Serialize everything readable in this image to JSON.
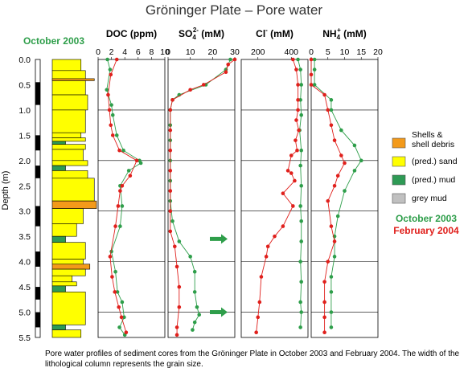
{
  "title": "Gröninger Plate – Pore water",
  "date_label": "October 2003",
  "caption": "Pore water profiles of sediment cores from the Gröninger Plate in October 2003 and February 2004. The width of the lithological column represents the grain size.",
  "depth_axis": {
    "label": "Depth (m)",
    "range": [
      0,
      5.5
    ],
    "ticks": [
      "0.0",
      "0.5",
      "1.0",
      "1.5",
      "2.0",
      "2.5",
      "3.0",
      "3.5",
      "4.0",
      "4.5",
      "5.0",
      "5.5"
    ]
  },
  "colors": {
    "october": "#2e9e4a",
    "february": "#e0201c",
    "shells": "#f39a1a",
    "sand": "#ffff00",
    "mud": "#2e9a55",
    "grey_mud": "#c0c0c0"
  },
  "legend": {
    "items": [
      {
        "key": "shells",
        "label_lines": [
          "Shells &",
          "shell debris"
        ]
      },
      {
        "key": "sand",
        "label_lines": [
          "(pred.) sand"
        ]
      },
      {
        "key": "mud",
        "label_lines": [
          "(pred.) mud"
        ]
      },
      {
        "key": "grey_mud",
        "label_lines": [
          "grey mud"
        ]
      }
    ],
    "series_october": "October 2003",
    "series_february": "February 2004"
  },
  "lithology": {
    "layers": [
      {
        "top": 0.0,
        "bottom": 0.22,
        "type": "sand",
        "grain_size": 0.65
      },
      {
        "top": 0.22,
        "bottom": 0.4,
        "type": "sand",
        "grain_size": 0.75
      },
      {
        "top": 0.38,
        "bottom": 0.42,
        "type": "shells",
        "grain_size": 0.95
      },
      {
        "top": 0.42,
        "bottom": 0.7,
        "type": "sand",
        "grain_size": 0.75
      },
      {
        "top": 0.7,
        "bottom": 1.0,
        "type": "sand",
        "grain_size": 0.8
      },
      {
        "top": 1.0,
        "bottom": 1.45,
        "type": "sand",
        "grain_size": 0.75
      },
      {
        "top": 1.45,
        "bottom": 1.55,
        "type": "sand",
        "grain_size": 0.65
      },
      {
        "top": 1.55,
        "bottom": 1.62,
        "type": "sand",
        "grain_size": 0.75
      },
      {
        "top": 1.62,
        "bottom": 1.68,
        "type": "mud",
        "grain_size": 0.3
      },
      {
        "top": 1.68,
        "bottom": 1.78,
        "type": "sand",
        "grain_size": 0.75
      },
      {
        "top": 1.78,
        "bottom": 2.0,
        "type": "sand",
        "grain_size": 0.7
      },
      {
        "top": 2.0,
        "bottom": 2.1,
        "type": "sand",
        "grain_size": 0.8
      },
      {
        "top": 2.1,
        "bottom": 2.2,
        "type": "mud",
        "grain_size": 0.3
      },
      {
        "top": 2.2,
        "bottom": 2.35,
        "type": "sand",
        "grain_size": 0.8
      },
      {
        "top": 2.35,
        "bottom": 2.8,
        "type": "sand",
        "grain_size": 0.95
      },
      {
        "top": 2.8,
        "bottom": 2.95,
        "type": "shells",
        "grain_size": 1.0
      },
      {
        "top": 2.95,
        "bottom": 3.25,
        "type": "sand",
        "grain_size": 0.7
      },
      {
        "top": 3.25,
        "bottom": 3.5,
        "type": "sand",
        "grain_size": 0.55
      },
      {
        "top": 3.5,
        "bottom": 3.62,
        "type": "mud",
        "grain_size": 0.3
      },
      {
        "top": 3.62,
        "bottom": 3.95,
        "type": "sand",
        "grain_size": 0.75
      },
      {
        "top": 3.95,
        "bottom": 4.05,
        "type": "sand",
        "grain_size": 0.7
      },
      {
        "top": 4.05,
        "bottom": 4.15,
        "type": "shells",
        "grain_size": 0.85
      },
      {
        "top": 4.15,
        "bottom": 4.28,
        "type": "sand",
        "grain_size": 0.75
      },
      {
        "top": 4.28,
        "bottom": 4.4,
        "type": "sand",
        "grain_size": 0.45
      },
      {
        "top": 4.4,
        "bottom": 4.48,
        "type": "sand",
        "grain_size": 0.55
      },
      {
        "top": 4.48,
        "bottom": 4.6,
        "type": "mud",
        "grain_size": 0.3
      },
      {
        "top": 4.6,
        "bottom": 5.25,
        "type": "sand",
        "grain_size": 0.75
      },
      {
        "top": 5.25,
        "bottom": 5.35,
        "type": "mud",
        "grain_size": 0.3
      },
      {
        "top": 5.35,
        "bottom": 5.5,
        "type": "sand",
        "grain_size": 0.65
      }
    ],
    "marker_bars": [
      [
        0.45,
        0.9
      ],
      [
        1.5,
        1.8
      ],
      [
        2.1,
        2.35
      ],
      [
        2.9,
        3.3
      ],
      [
        3.8,
        4.1
      ],
      [
        4.5,
        4.75
      ],
      [
        5.0,
        5.3
      ]
    ]
  },
  "chart_data": [
    {
      "type": "line",
      "title": "DOC (ppm)",
      "xlim": [
        0,
        10
      ],
      "xticks": [
        "0",
        "2",
        "4",
        "6",
        "8",
        "10"
      ],
      "grid": true,
      "gridlines": [
        1.0,
        2.0,
        3.0,
        4.0,
        5.0
      ],
      "series": [
        {
          "name": "October 2003",
          "points": [
            [
              1.4,
              0
            ],
            [
              1.8,
              0.2
            ],
            [
              1.3,
              0.6
            ],
            [
              2.0,
              0.9
            ],
            [
              2.2,
              1.1
            ],
            [
              2.8,
              1.5
            ],
            [
              3.8,
              1.8
            ],
            [
              6.2,
              2.0
            ],
            [
              6.4,
              2.05
            ],
            [
              4.6,
              2.2
            ],
            [
              3.3,
              2.5
            ],
            [
              3.6,
              2.9
            ],
            [
              3.3,
              3.3
            ],
            [
              2.0,
              3.8
            ],
            [
              2.6,
              4.2
            ],
            [
              2.9,
              4.6
            ],
            [
              3.6,
              4.8
            ],
            [
              3.9,
              5.1
            ],
            [
              3.2,
              5.3
            ],
            [
              4.0,
              5.45
            ]
          ]
        },
        {
          "name": "February 2004",
          "points": [
            [
              2.8,
              0
            ],
            [
              1.9,
              0.3
            ],
            [
              1.5,
              0.7
            ],
            [
              1.7,
              1.0
            ],
            [
              1.9,
              1.3
            ],
            [
              2.2,
              1.5
            ],
            [
              3.2,
              1.8
            ],
            [
              5.8,
              2.0
            ],
            [
              4.8,
              2.3
            ],
            [
              3.6,
              2.5
            ],
            [
              3.3,
              2.6
            ],
            [
              3.0,
              2.9
            ],
            [
              2.6,
              3.3
            ],
            [
              1.8,
              3.9
            ],
            [
              2.1,
              4.3
            ],
            [
              2.5,
              4.6
            ],
            [
              3.1,
              4.9
            ],
            [
              3.5,
              5.1
            ],
            [
              4.2,
              5.4
            ]
          ]
        }
      ]
    },
    {
      "type": "line",
      "title_main": "SO",
      "title_sub": "4",
      "title_sup": "2-",
      "title_unit": " (mM)",
      "xlim": [
        0,
        30
      ],
      "xticks": [
        "0",
        "10",
        "20",
        "30"
      ],
      "grid": true,
      "gridlines": [
        1.0,
        2.0,
        3.0,
        4.0,
        5.0
      ],
      "arrow_depths": [
        3.55,
        5.0
      ],
      "series": [
        {
          "name": "October 2003",
          "points": [
            [
              28,
              0
            ],
            [
              26,
              0.2
            ],
            [
              17,
              0.5
            ],
            [
              5,
              0.7
            ],
            [
              2,
              0.8
            ],
            [
              1,
              1.0
            ],
            [
              1,
              1.3
            ],
            [
              1,
              1.6
            ],
            [
              1,
              2.0
            ],
            [
              1,
              2.4
            ],
            [
              1,
              2.8
            ],
            [
              2,
              3.2
            ],
            [
              5,
              3.6
            ],
            [
              10,
              3.9
            ],
            [
              12,
              4.2
            ],
            [
              12,
              4.6
            ],
            [
              13,
              4.9
            ],
            [
              14,
              5.05
            ],
            [
              12,
              5.2
            ],
            [
              11,
              5.35
            ]
          ]
        },
        {
          "name": "February 2004",
          "points": [
            [
              30,
              0
            ],
            [
              27,
              0.1
            ],
            [
              26,
              0.25
            ],
            [
              16,
              0.5
            ],
            [
              10,
              0.6
            ],
            [
              2,
              0.8
            ],
            [
              1,
              1.0
            ],
            [
              1,
              1.4
            ],
            [
              1,
              1.8
            ],
            [
              1,
              2.2
            ],
            [
              1,
              2.6
            ],
            [
              1,
              3.0
            ],
            [
              1,
              3.4
            ],
            [
              3,
              3.7
            ],
            [
              4,
              4.1
            ],
            [
              5,
              4.5
            ],
            [
              5,
              4.9
            ],
            [
              4,
              5.3
            ],
            [
              4,
              5.45
            ]
          ]
        }
      ]
    },
    {
      "type": "line",
      "title_main": "Cl",
      "title_sup": "-",
      "title_unit": " (mM)",
      "xlim": [
        100,
        500
      ],
      "xticks": [
        "200",
        "400"
      ],
      "grid": true,
      "gridlines": [
        1.0,
        2.0,
        3.0,
        4.0,
        5.0
      ],
      "series": [
        {
          "name": "October 2003",
          "points": [
            [
              440,
              0
            ],
            [
              455,
              0.2
            ],
            [
              460,
              0.5
            ],
            [
              455,
              0.8
            ],
            [
              460,
              1.1
            ],
            [
              450,
              1.4
            ],
            [
              460,
              1.8
            ],
            [
              455,
              2.1
            ],
            [
              460,
              2.5
            ],
            [
              455,
              2.9
            ],
            [
              460,
              3.2
            ],
            [
              460,
              3.6
            ],
            [
              455,
              4.0
            ],
            [
              460,
              4.4
            ],
            [
              455,
              4.8
            ],
            [
              460,
              5.0
            ],
            [
              455,
              5.3
            ]
          ]
        },
        {
          "name": "February 2004",
          "points": [
            [
              410,
              0
            ],
            [
              430,
              0.2
            ],
            [
              440,
              0.5
            ],
            [
              440,
              0.8
            ],
            [
              440,
              1.0
            ],
            [
              430,
              1.2
            ],
            [
              445,
              1.4
            ],
            [
              425,
              1.6
            ],
            [
              435,
              1.8
            ],
            [
              400,
              1.9
            ],
            [
              380,
              2.2
            ],
            [
              400,
              2.25
            ],
            [
              420,
              2.4
            ],
            [
              350,
              2.65
            ],
            [
              410,
              2.9
            ],
            [
              350,
              3.3
            ],
            [
              300,
              3.5
            ],
            [
              260,
              3.7
            ],
            [
              250,
              3.9
            ],
            [
              220,
              4.3
            ],
            [
              210,
              4.8
            ],
            [
              200,
              5.1
            ],
            [
              190,
              5.4
            ]
          ]
        }
      ]
    },
    {
      "type": "line",
      "title_main": "NH",
      "title_sub": "4",
      "title_sup": "+",
      "title_unit": " (mM)",
      "xlim": [
        0,
        20
      ],
      "xticks": [
        "0",
        "5",
        "10",
        "15",
        "20"
      ],
      "grid": true,
      "gridlines": [
        1.0,
        2.0,
        3.0,
        4.0,
        5.0
      ],
      "series": [
        {
          "name": "October 2003",
          "points": [
            [
              1,
              0
            ],
            [
              1,
              0.2
            ],
            [
              1,
              0.5
            ],
            [
              6,
              0.8
            ],
            [
              6,
              1.0
            ],
            [
              9,
              1.4
            ],
            [
              13,
              1.7
            ],
            [
              15,
              2.0
            ],
            [
              13,
              2.2
            ],
            [
              10,
              2.6
            ],
            [
              8,
              3.1
            ],
            [
              7,
              3.5
            ],
            [
              7,
              3.9
            ],
            [
              6,
              4.3
            ],
            [
              6,
              4.6
            ],
            [
              6,
              5.0
            ],
            [
              6,
              5.3
            ]
          ]
        },
        {
          "name": "February 2004",
          "points": [
            [
              0,
              0
            ],
            [
              0,
              0.3
            ],
            [
              0,
              0.5
            ],
            [
              4,
              0.7
            ],
            [
              5,
              1.0
            ],
            [
              6,
              1.3
            ],
            [
              7,
              1.6
            ],
            [
              9,
              1.9
            ],
            [
              10,
              2.05
            ],
            [
              8,
              2.3
            ],
            [
              7,
              2.5
            ],
            [
              5,
              2.8
            ],
            [
              6,
              3.3
            ],
            [
              7,
              3.6
            ],
            [
              5,
              4.0
            ],
            [
              4,
              4.4
            ],
            [
              4,
              4.8
            ],
            [
              4,
              5.1
            ],
            [
              4,
              5.4
            ]
          ]
        }
      ]
    }
  ]
}
